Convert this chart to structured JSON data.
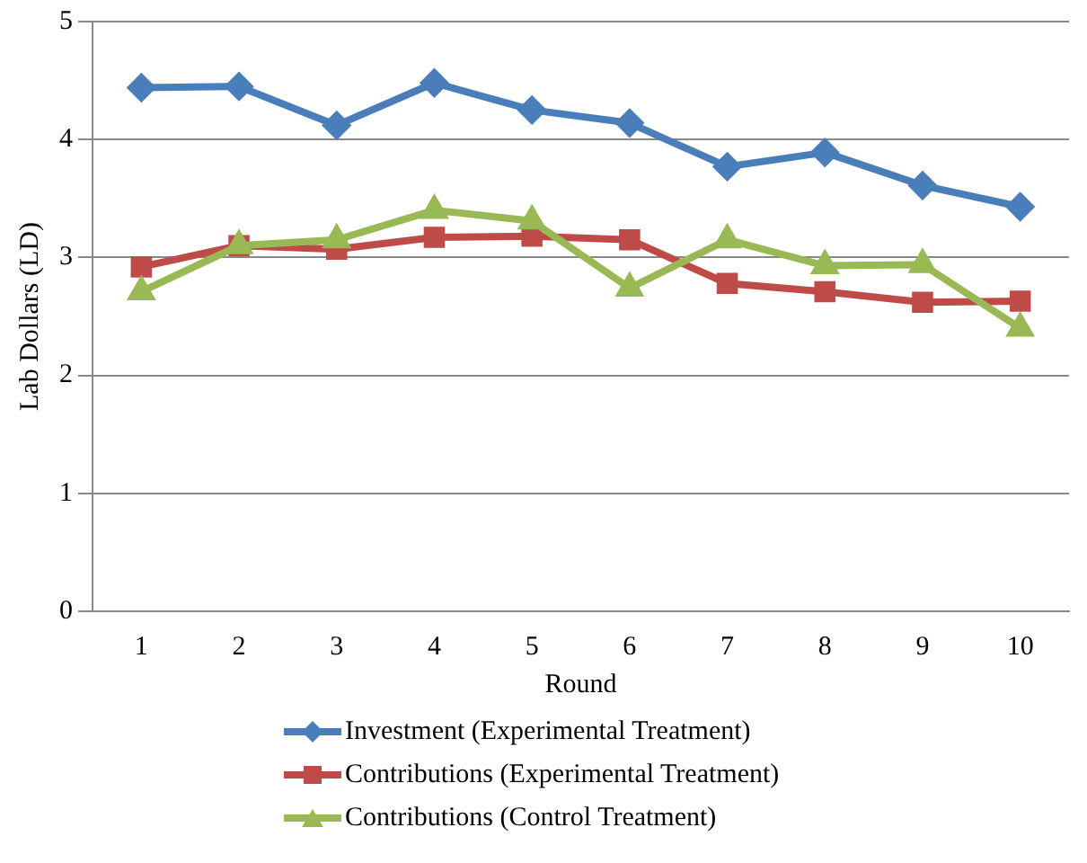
{
  "chart_data": {
    "type": "line",
    "xlabel": "Round",
    "ylabel": "Lab Dollars (LD)",
    "categories": [
      "1",
      "2",
      "3",
      "4",
      "5",
      "6",
      "7",
      "8",
      "9",
      "10"
    ],
    "ylim": [
      0,
      5
    ],
    "yticks": [
      0,
      1,
      2,
      3,
      4,
      5
    ],
    "grid": "y",
    "legend": "bottom",
    "line_style": "solid",
    "series": [
      {
        "name": "Investment (Experimental Treatment)",
        "color": "#4a7ebb",
        "marker": "diamond",
        "values": [
          4.44,
          4.45,
          4.12,
          4.48,
          4.25,
          4.14,
          3.77,
          3.89,
          3.61,
          3.43
        ]
      },
      {
        "name": "Contributions (Experimental Treatment)",
        "color": "#be4b48",
        "marker": "square",
        "values": [
          2.92,
          3.1,
          3.07,
          3.17,
          3.18,
          3.15,
          2.78,
          2.71,
          2.62,
          2.63
        ]
      },
      {
        "name": "Contributions (Control Treatment)",
        "color": "#98b954",
        "marker": "triangle",
        "values": [
          2.71,
          3.1,
          3.15,
          3.4,
          3.31,
          2.74,
          3.15,
          2.93,
          2.94,
          2.4
        ]
      }
    ]
  }
}
